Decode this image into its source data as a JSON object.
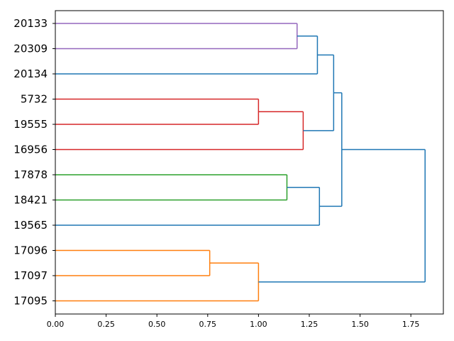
{
  "chart_data": {
    "type": "dendrogram",
    "orientation": "horizontal",
    "title": "",
    "xlabel": "",
    "ylabel": "",
    "xlim": [
      0,
      1.91
    ],
    "xticks": [
      "0.00",
      "0.25",
      "0.50",
      "0.75",
      "1.00",
      "1.25",
      "1.50",
      "1.75"
    ],
    "xtick_values": [
      0,
      0.25,
      0.5,
      0.75,
      1.0,
      1.25,
      1.5,
      1.75
    ],
    "leaves": [
      "20133",
      "20309",
      "20134",
      "5732",
      "19555",
      "16956",
      "17878",
      "18421",
      "19565",
      "17096",
      "17097",
      "17095"
    ],
    "merges": [
      {
        "id": "m1",
        "left": "20133",
        "right": "20309",
        "height": 1.19,
        "color": "#9467bd"
      },
      {
        "id": "m2",
        "left": "m1",
        "right": "20134",
        "height": 1.29,
        "color": "#1f77b4"
      },
      {
        "id": "m3",
        "left": "5732",
        "right": "19555",
        "height": 1.0,
        "color": "#d62728"
      },
      {
        "id": "m4",
        "left": "m3",
        "right": "16956",
        "height": 1.22,
        "color": "#d62728"
      },
      {
        "id": "m5",
        "left": "m2",
        "right": "m4",
        "height": 1.37,
        "color": "#1f77b4"
      },
      {
        "id": "m6",
        "left": "17878",
        "right": "18421",
        "height": 1.14,
        "color": "#2ca02c"
      },
      {
        "id": "m7",
        "left": "m6",
        "right": "19565",
        "height": 1.3,
        "color": "#1f77b4"
      },
      {
        "id": "m8",
        "left": "m5",
        "right": "m7",
        "height": 1.41,
        "color": "#1f77b4"
      },
      {
        "id": "m9",
        "left": "17096",
        "right": "17097",
        "height": 0.76,
        "color": "#ff7f0e"
      },
      {
        "id": "m10",
        "left": "m9",
        "right": "17095",
        "height": 1.0,
        "color": "#ff7f0e"
      },
      {
        "id": "m11",
        "left": "m8",
        "right": "m10",
        "height": 1.82,
        "color": "#1f77b4"
      }
    ],
    "leaf_link_colors": {
      "20133": "#9467bd",
      "20309": "#9467bd",
      "20134": "#1f77b4",
      "5732": "#d62728",
      "19555": "#d62728",
      "16956": "#d62728",
      "17878": "#2ca02c",
      "18421": "#2ca02c",
      "19565": "#1f77b4",
      "17096": "#ff7f0e",
      "17097": "#ff7f0e",
      "17095": "#ff7f0e"
    },
    "grid": false,
    "legend": "none"
  }
}
